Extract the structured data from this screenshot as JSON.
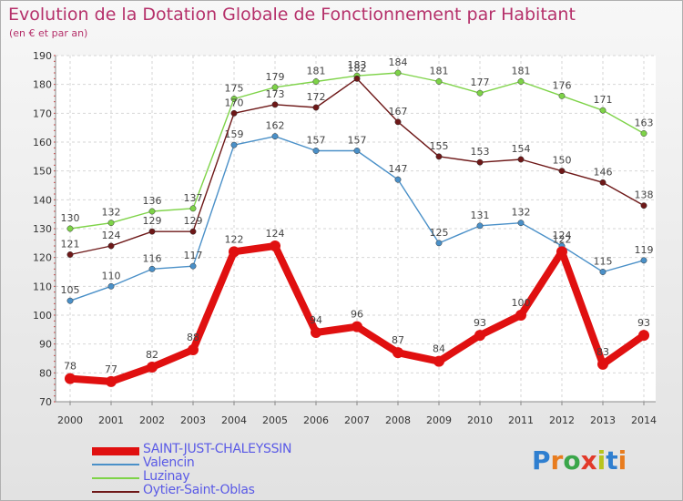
{
  "title": "Evolution de la Dotation Globale de Fonctionnement par Habitant",
  "subtitle": "(en € et par an)",
  "logo_text": "Proxiti",
  "chart_data": {
    "type": "line",
    "title": "Evolution de la Dotation Globale de Fonctionnement par Habitant",
    "subtitle": "(en € et par an)",
    "xlabel": "",
    "ylabel": "",
    "ylim": [
      70,
      190
    ],
    "yticks": [
      70,
      80,
      90,
      100,
      110,
      120,
      130,
      140,
      150,
      160,
      170,
      180,
      190
    ],
    "grid": true,
    "legend_position": "bottom-left",
    "categories": [
      "2000",
      "2001",
      "2002",
      "2003",
      "2004",
      "2005",
      "2006",
      "2007",
      "2008",
      "2009",
      "2010",
      "2011",
      "2012",
      "2013",
      "2014"
    ],
    "series": [
      {
        "name": "SAINT-JUST-CHALEYSSIN",
        "color": "#e01010",
        "emphasis": true,
        "values": [
          78,
          77,
          82,
          88,
          122,
          124,
          94,
          96,
          87,
          84,
          93,
          100,
          122,
          83,
          93
        ],
        "labels": [
          "78",
          "77",
          "82",
          "88",
          "122",
          "124",
          "94",
          "96",
          "87",
          "84",
          "93",
          "100",
          "122",
          "83",
          "93"
        ]
      },
      {
        "name": "Valencin",
        "color": "#4a90c8",
        "emphasis": false,
        "values": [
          105,
          110,
          116,
          117,
          159,
          162,
          157,
          157,
          147,
          125,
          131,
          132,
          124,
          115,
          119
        ],
        "labels": [
          "105",
          "110",
          "116",
          "117",
          "159",
          "162",
          "157",
          "157",
          "147",
          "125",
          "131",
          "132",
          "124",
          "115",
          "119"
        ]
      },
      {
        "name": "Luzinay",
        "color": "#7ed348",
        "emphasis": false,
        "values": [
          130,
          132,
          136,
          137,
          175,
          179,
          181,
          183,
          184,
          181,
          177,
          181,
          176,
          171,
          163
        ],
        "labels": [
          "130",
          "132",
          "136",
          "137",
          "175",
          "179",
          "181",
          "183",
          "184",
          "181",
          "177",
          "181",
          "176",
          "171",
          "163"
        ]
      },
      {
        "name": "Oytier-Saint-Oblas",
        "color": "#6e1818",
        "emphasis": false,
        "values": [
          121,
          124,
          129,
          129,
          170,
          173,
          172,
          182,
          167,
          155,
          153,
          154,
          150,
          146,
          138
        ],
        "labels": [
          "121",
          "124",
          "129",
          "129",
          "170",
          "173",
          "172",
          "182",
          "167",
          "155",
          "153",
          "154",
          "150",
          "146",
          "138"
        ]
      }
    ]
  }
}
